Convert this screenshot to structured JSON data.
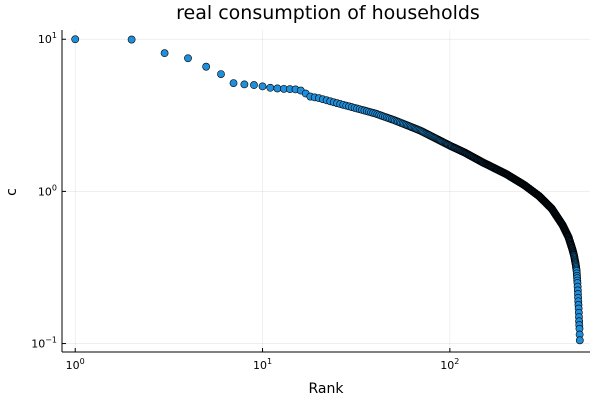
{
  "chart_data": {
    "type": "scatter",
    "title": "real consumption of households",
    "xlabel": "Rank",
    "ylabel": "c",
    "x_scale": "log",
    "y_scale": "log",
    "xlim": [
      0.85,
      560
    ],
    "ylim": [
      0.088,
      11.5
    ],
    "grid": true,
    "legend": "none",
    "colors": {
      "marker": "#1f8fdc",
      "marker_edge": "#000000"
    },
    "x_ticks": [
      {
        "value": 1,
        "base": "10",
        "exp": "0"
      },
      {
        "value": 10,
        "base": "10",
        "exp": "1"
      },
      {
        "value": 100,
        "base": "10",
        "exp": "2"
      }
    ],
    "y_ticks": [
      {
        "value": 0.1,
        "base": "10",
        "exp": "−1"
      },
      {
        "value": 1,
        "base": "10",
        "exp": "0"
      },
      {
        "value": 10,
        "base": "10",
        "exp": "1"
      }
    ],
    "series": [
      {
        "anchors": [
          [
            1,
            10.0
          ],
          [
            2,
            9.95
          ],
          [
            3,
            8.1
          ],
          [
            4,
            7.5
          ],
          [
            5,
            6.6
          ],
          [
            6,
            5.9
          ],
          [
            7,
            5.15
          ],
          [
            8,
            5.05
          ],
          [
            9,
            5.0
          ],
          [
            10,
            4.9
          ],
          [
            11,
            4.8
          ],
          [
            12,
            4.75
          ],
          [
            13,
            4.72
          ],
          [
            14,
            4.7
          ],
          [
            15,
            4.68
          ],
          [
            16,
            4.6
          ],
          [
            17,
            4.4
          ],
          [
            18,
            4.2
          ],
          [
            20,
            4.1
          ],
          [
            25,
            3.8
          ],
          [
            30,
            3.58
          ],
          [
            40,
            3.25
          ],
          [
            50,
            2.95
          ],
          [
            60,
            2.7
          ],
          [
            70,
            2.5
          ],
          [
            80,
            2.3
          ],
          [
            100,
            2.0
          ],
          [
            120,
            1.8
          ],
          [
            150,
            1.55
          ],
          [
            200,
            1.3
          ],
          [
            250,
            1.1
          ],
          [
            300,
            0.93
          ],
          [
            350,
            0.77
          ],
          [
            400,
            0.6
          ],
          [
            430,
            0.5
          ],
          [
            450,
            0.42
          ],
          [
            460,
            0.38
          ],
          [
            470,
            0.33
          ],
          [
            475,
            0.3
          ],
          [
            480,
            0.25
          ],
          [
            484,
            0.2
          ],
          [
            487,
            0.17
          ],
          [
            490,
            0.14
          ],
          [
            492,
            0.125
          ],
          [
            494,
            0.105
          ]
        ],
        "n_points": 494
      }
    ]
  }
}
